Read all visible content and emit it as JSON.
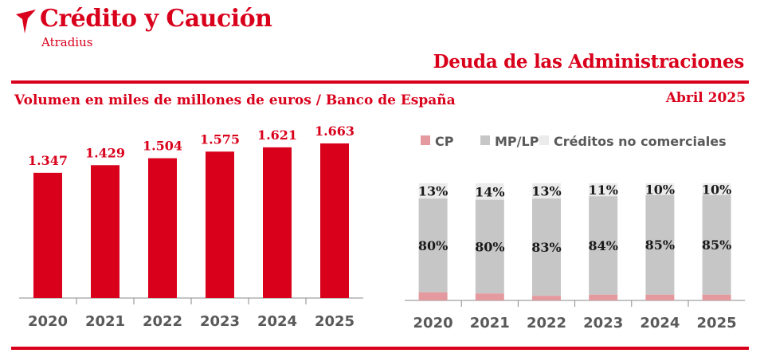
{
  "header": {
    "brand_name": "Crédito y Caución",
    "brand_sub": "Atradius",
    "report_title": "Deuda de las Administraciones",
    "subtitle": "Volumen en miles de millones de euros  / Banco de España",
    "date": "Abril  2025"
  },
  "colors": {
    "brand_red": "#d9001b",
    "cp": "#e3999e",
    "mp_lp": "#c6c6c6",
    "creditos": "#ebebeb",
    "axis_text": "#595959"
  },
  "chart_data": [
    {
      "type": "bar",
      "categories": [
        "2020",
        "2021",
        "2022",
        "2023",
        "2024",
        "2025"
      ],
      "values": [
        1347,
        1429,
        1504,
        1575,
        1621,
        1663
      ],
      "value_labels": [
        "1.347",
        "1.429",
        "1.504",
        "1.575",
        "1.621",
        "1.663"
      ],
      "ylim": [
        0,
        1800
      ],
      "grid": false,
      "legend": "none"
    },
    {
      "type": "bar",
      "stacked": true,
      "percent": true,
      "categories": [
        "2020",
        "2021",
        "2022",
        "2023",
        "2024",
        "2025"
      ],
      "series": [
        {
          "name": "CP",
          "values": [
            7,
            6,
            4,
            5,
            5,
            5
          ]
        },
        {
          "name": "MP/LP",
          "values": [
            80,
            80,
            83,
            84,
            85,
            85
          ]
        },
        {
          "name": "Créditos no comerciales",
          "values": [
            13,
            14,
            13,
            11,
            10,
            10
          ]
        }
      ],
      "ylim": [
        0,
        100
      ],
      "grid": false,
      "legend": "top"
    }
  ]
}
